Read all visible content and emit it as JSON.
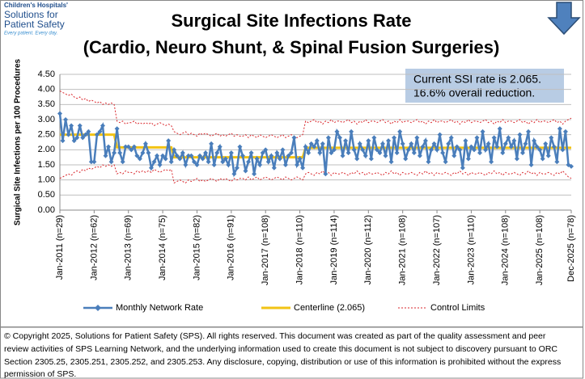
{
  "logo": {
    "lines": [
      "Children's Hospitals'",
      "Solutions for",
      "Patient Safety",
      "Every patient. Every day."
    ]
  },
  "footer": {
    "lines": [
      "© Copyright 2025, Solutions for Patient Safety (SPS).  All rights reserved.  This document was created as part of the quality assessment and peer",
      "review activities of SPS Learning Network, and the underlying information used to create this document is not subject to discovery pursuant to ORC",
      "Section 2305.25, 2305.251, 2305.252, and 2305.253. Any disclosure, copying, distribution or use of this information is prohibited without the express",
      "permission of SPS."
    ]
  },
  "chart_data": {
    "type": "line",
    "title": [
      "Surgical Site Infections Rate",
      "(Cardio, Neuro Shunt, & Spinal Fusion Surgeries)"
    ],
    "annotation": [
      "Current SSI rate is 2.065.",
      "16.6% overall reduction."
    ],
    "y_label": "Surgical Site Infections  per 100 Procedures",
    "ylim": [
      0,
      4.5
    ],
    "yticks": [
      {
        "value": 0,
        "label": "0.00"
      },
      {
        "value": 0.5,
        "label": "0.50"
      },
      {
        "value": 1,
        "label": "1.00"
      },
      {
        "value": 1.5,
        "label": "1.50"
      },
      {
        "value": 2,
        "label": "2.00"
      },
      {
        "value": 2.5,
        "label": "2.50"
      },
      {
        "value": 3,
        "label": "3.00"
      },
      {
        "value": 3.5,
        "label": "3.50"
      },
      {
        "value": 4,
        "label": "4.00"
      },
      {
        "value": 4.5,
        "label": "4.50"
      }
    ],
    "grid": true,
    "categories": [
      "Jan-2011 (n=29)",
      null,
      null,
      null,
      null,
      null,
      null,
      null,
      null,
      null,
      null,
      null,
      "Jan-2012 (n=62)",
      null,
      null,
      null,
      null,
      null,
      null,
      null,
      null,
      null,
      null,
      null,
      "Jan-2013 (n=69)",
      null,
      null,
      null,
      null,
      null,
      null,
      null,
      null,
      null,
      null,
      null,
      "Jan-2014 (n=75)",
      null,
      null,
      null,
      null,
      null,
      null,
      null,
      null,
      null,
      null,
      null,
      "Jan-2015 (n=82)",
      null,
      null,
      null,
      null,
      null,
      null,
      null,
      null,
      null,
      null,
      null,
      "Jan-2016 (n=91)",
      null,
      null,
      null,
      null,
      null,
      null,
      null,
      null,
      null,
      null,
      null,
      "Jan-2017 (n=108)",
      null,
      null,
      null,
      null,
      null,
      null,
      null,
      null,
      null,
      null,
      null,
      "Jan-2018 (n=110)",
      null,
      null,
      null,
      null,
      null,
      null,
      null,
      null,
      null,
      null,
      null,
      "Jan-2019 (n=114)",
      null,
      null,
      null,
      null,
      null,
      null,
      null,
      null,
      null,
      null,
      null,
      "Jan-2020 (n=112)",
      null,
      null,
      null,
      null,
      null,
      null,
      null,
      null,
      null,
      null,
      null,
      "Jan-2021 (n=108)",
      null,
      null,
      null,
      null,
      null,
      null,
      null,
      null,
      null,
      null,
      null,
      "Jan-2022 (n=107)",
      null,
      null,
      null,
      null,
      null,
      null,
      null,
      null,
      null,
      null,
      null,
      "Jan-2023 (n=110)",
      null,
      null,
      null,
      null,
      null,
      null,
      null,
      null,
      null,
      null,
      null,
      "Jan-2024 (n=108)",
      null,
      null,
      null,
      null,
      null,
      null,
      null,
      null,
      null,
      null,
      null,
      "Jan-2025 (n=108)",
      null,
      null,
      null,
      null,
      null,
      null,
      null,
      null,
      null,
      null,
      "Dec-2025 (n=78)"
    ],
    "series": [
      {
        "name": "Monthly Network Rate",
        "color": "#4a7ebb",
        "marker": "diamond",
        "style": "solid",
        "width": 2.5,
        "values": [
          3.2,
          2.3,
          3.0,
          2.5,
          2.8,
          2.3,
          2.4,
          2.8,
          2.4,
          2.5,
          2.6,
          1.6,
          1.6,
          2.5,
          2.6,
          2.8,
          1.8,
          2.1,
          1.6,
          1.9,
          2.7,
          1.9,
          1.6,
          2.1,
          2.1,
          2.0,
          2.1,
          1.8,
          1.7,
          1.9,
          2.2,
          1.9,
          1.4,
          1.6,
          1.8,
          1.5,
          1.8,
          1.7,
          2.3,
          1.6,
          2.0,
          1.8,
          1.7,
          1.9,
          1.5,
          1.8,
          1.8,
          1.6,
          1.5,
          1.8,
          1.7,
          1.9,
          1.6,
          2.2,
          1.5,
          1.9,
          2.1,
          1.6,
          1.7,
          1.5,
          1.9,
          1.2,
          1.4,
          2.1,
          1.8,
          1.3,
          1.6,
          1.9,
          1.2,
          1.7,
          1.5,
          1.9,
          2.0,
          1.6,
          1.8,
          1.4,
          1.9,
          1.7,
          2.0,
          1.5,
          1.8,
          1.9,
          2.4,
          1.5,
          1.7,
          1.4,
          2.1,
          1.9,
          2.2,
          2.1,
          2.3,
          1.9,
          2.2,
          1.2,
          2.4,
          1.9,
          2.0,
          2.6,
          2.4,
          1.8,
          2.3,
          1.9,
          2.6,
          2.0,
          1.7,
          2.2,
          2.0,
          1.8,
          2.3,
          1.7,
          2.4,
          2.0,
          1.9,
          2.2,
          1.8,
          2.3,
          1.6,
          2.4,
          1.9,
          2.6,
          2.2,
          1.7,
          2.0,
          2.2,
          1.9,
          2.4,
          1.8,
          2.1,
          2.3,
          1.6,
          2.0,
          2.2,
          2.0,
          2.5,
          1.9,
          1.6,
          2.2,
          2.4,
          1.8,
          2.1,
          2.0,
          1.4,
          2.3,
          1.7,
          2.1,
          2.0,
          2.4,
          1.9,
          2.6,
          2.0,
          2.2,
          1.6,
          2.4,
          2.1,
          2.7,
          1.9,
          2.2,
          2.4,
          2.1,
          2.3,
          1.7,
          2.5,
          1.9,
          2.2,
          2.6,
          1.5,
          2.3,
          2.1,
          2.0,
          1.7,
          2.2,
          1.8,
          2.4,
          2.1,
          1.6,
          2.7,
          2.0,
          2.6,
          1.5,
          1.45
        ]
      },
      {
        "name": "Centerline (2.065)",
        "color": "#f2c314",
        "marker": "none",
        "style": "solid",
        "width": 3,
        "values": [
          2.5,
          2.5,
          2.5,
          2.5,
          2.5,
          2.5,
          2.5,
          2.5,
          2.5,
          2.5,
          2.5,
          2.5,
          2.5,
          2.5,
          2.5,
          2.5,
          2.5,
          2.5,
          2.5,
          2.5,
          2.08,
          2.08,
          2.08,
          2.08,
          2.08,
          2.08,
          2.08,
          2.08,
          2.08,
          2.08,
          2.08,
          2.08,
          2.08,
          2.08,
          2.08,
          2.08,
          2.08,
          2.08,
          2.08,
          2.08,
          1.75,
          1.75,
          1.75,
          1.75,
          1.75,
          1.75,
          1.75,
          1.75,
          1.75,
          1.75,
          1.75,
          1.75,
          1.75,
          1.75,
          1.75,
          1.75,
          1.75,
          1.75,
          1.75,
          1.75,
          1.75,
          1.75,
          1.75,
          1.75,
          1.75,
          1.75,
          1.75,
          1.75,
          1.75,
          1.75,
          1.75,
          1.75,
          1.75,
          1.75,
          1.75,
          1.75,
          1.75,
          1.75,
          1.75,
          1.75,
          1.75,
          1.75,
          1.75,
          1.75,
          1.75,
          1.75,
          2.065,
          2.065,
          2.065,
          2.065,
          2.065,
          2.065,
          2.065,
          2.065,
          2.065,
          2.065,
          2.065,
          2.065,
          2.065,
          2.065,
          2.065,
          2.065,
          2.065,
          2.065,
          2.065,
          2.065,
          2.065,
          2.065,
          2.065,
          2.065,
          2.065,
          2.065,
          2.065,
          2.065,
          2.065,
          2.065,
          2.065,
          2.065,
          2.065,
          2.065,
          2.065,
          2.065,
          2.065,
          2.065,
          2.065,
          2.065,
          2.065,
          2.065,
          2.065,
          2.065,
          2.065,
          2.065,
          2.065,
          2.065,
          2.065,
          2.065,
          2.065,
          2.065,
          2.065,
          2.065,
          2.065,
          2.065,
          2.065,
          2.065,
          2.065,
          2.065,
          2.065,
          2.065,
          2.065,
          2.065,
          2.065,
          2.065,
          2.065,
          2.065,
          2.065,
          2.065,
          2.065,
          2.065,
          2.065,
          2.065,
          2.065,
          2.065,
          2.065,
          2.065,
          2.065,
          2.065,
          2.065,
          2.065,
          2.065,
          2.065,
          2.065,
          2.065,
          2.065,
          2.065,
          2.065,
          2.065,
          2.065,
          2.065,
          2.065,
          2.065
        ]
      },
      {
        "name": "Control Limits",
        "color": "#d9262b",
        "marker": "none",
        "style": "dotted",
        "width": 1,
        "values": [
          3.95,
          3.9,
          3.85,
          3.8,
          3.85,
          3.75,
          3.7,
          3.75,
          3.65,
          3.7,
          3.6,
          3.65,
          3.6,
          3.55,
          3.6,
          3.5,
          3.55,
          3.5,
          3.55,
          3.5,
          2.95,
          2.9,
          2.95,
          2.85,
          2.9,
          2.9,
          2.95,
          2.85,
          2.9,
          2.85,
          2.9,
          2.85,
          2.9,
          2.8,
          2.85,
          2.9,
          2.85,
          2.8,
          2.85,
          2.8,
          2.6,
          2.55,
          2.5,
          2.55,
          2.6,
          2.5,
          2.55,
          2.5,
          2.45,
          2.55,
          2.5,
          2.55,
          2.5,
          2.45,
          2.5,
          2.55,
          2.45,
          2.5,
          2.45,
          2.5,
          2.55,
          2.45,
          2.5,
          2.45,
          2.45,
          2.5,
          2.4,
          2.5,
          2.45,
          2.4,
          2.5,
          2.45,
          2.4,
          2.45,
          2.5,
          2.45,
          2.4,
          2.45,
          2.5,
          2.4,
          2.45,
          2.5,
          2.45,
          2.4,
          2.45,
          2.5,
          2.95,
          2.9,
          2.95,
          3.0,
          2.9,
          2.95,
          2.85,
          2.95,
          2.9,
          3.0,
          2.9,
          2.95,
          2.95,
          2.9,
          2.95,
          3.0,
          2.9,
          2.95,
          2.85,
          2.95,
          2.9,
          3.0,
          2.9,
          2.95,
          2.95,
          2.9,
          2.95,
          3.0,
          2.9,
          2.95,
          2.85,
          2.95,
          2.9,
          3.0,
          2.9,
          2.95,
          2.95,
          2.9,
          2.95,
          3.0,
          2.9,
          2.95,
          2.85,
          2.95,
          2.9,
          3.0,
          2.9,
          2.95,
          2.95,
          2.9,
          2.95,
          3.0,
          2.9,
          2.95,
          2.85,
          2.95,
          2.9,
          3.0,
          2.9,
          2.95,
          2.95,
          2.9,
          2.95,
          3.0,
          2.9,
          2.95,
          2.85,
          2.95,
          2.9,
          3.0,
          2.9,
          2.95,
          2.95,
          2.9,
          2.95,
          3.0,
          2.9,
          2.95,
          2.85,
          2.95,
          2.9,
          3.0,
          2.9,
          2.95,
          2.95,
          2.9,
          2.95,
          3.0,
          2.9,
          2.95,
          2.85,
          2.95,
          3.0,
          3.05
        ],
        "lower_values": [
          1.05,
          1.1,
          1.15,
          1.2,
          1.15,
          1.25,
          1.3,
          1.25,
          1.35,
          1.3,
          1.4,
          1.35,
          1.4,
          1.45,
          1.4,
          1.5,
          1.45,
          1.5,
          1.45,
          1.5,
          1.2,
          1.25,
          1.2,
          1.3,
          1.25,
          1.25,
          1.2,
          1.3,
          1.25,
          1.3,
          1.25,
          1.3,
          1.25,
          1.35,
          1.3,
          1.25,
          1.3,
          1.35,
          1.3,
          1.35,
          0.9,
          0.95,
          1.0,
          0.95,
          0.9,
          1.0,
          0.95,
          1.0,
          1.05,
          0.95,
          1.0,
          0.95,
          1.0,
          1.05,
          1.0,
          0.95,
          1.05,
          1.0,
          1.05,
          1.0,
          0.95,
          1.05,
          1.0,
          1.05,
          1.05,
          1.0,
          1.1,
          1.0,
          1.05,
          1.1,
          1.0,
          1.05,
          1.1,
          1.05,
          1.0,
          1.05,
          1.1,
          1.05,
          1.0,
          1.1,
          1.05,
          1.0,
          1.05,
          1.1,
          1.05,
          1.0,
          1.2,
          1.25,
          1.2,
          1.15,
          1.25,
          1.2,
          1.3,
          1.2,
          1.25,
          1.15,
          1.25,
          1.2,
          1.2,
          1.25,
          1.2,
          1.15,
          1.25,
          1.2,
          1.3,
          1.2,
          1.25,
          1.15,
          1.25,
          1.2,
          1.2,
          1.25,
          1.2,
          1.15,
          1.25,
          1.2,
          1.3,
          1.2,
          1.25,
          1.15,
          1.25,
          1.2,
          1.2,
          1.25,
          1.2,
          1.15,
          1.25,
          1.2,
          1.3,
          1.2,
          1.25,
          1.15,
          1.25,
          1.2,
          1.2,
          1.25,
          1.2,
          1.15,
          1.25,
          1.2,
          1.3,
          1.2,
          1.25,
          1.15,
          1.25,
          1.2,
          1.2,
          1.25,
          1.2,
          1.15,
          1.25,
          1.2,
          1.3,
          1.2,
          1.25,
          1.15,
          1.25,
          1.2,
          1.2,
          1.25,
          1.2,
          1.15,
          1.25,
          1.2,
          1.3,
          1.2,
          1.25,
          1.15,
          1.25,
          1.2,
          1.2,
          1.25,
          1.2,
          1.15,
          1.25,
          1.2,
          1.3,
          1.2,
          1.1,
          1.05
        ]
      }
    ]
  }
}
